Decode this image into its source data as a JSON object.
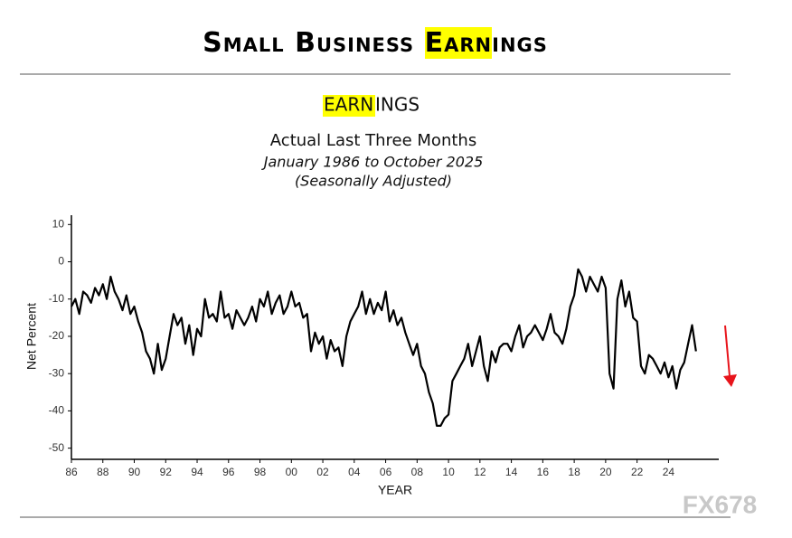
{
  "header_title": [
    "Small Business ",
    "Earn",
    "ings"
  ],
  "chart_data": {
    "type": "line",
    "title": [
      "EARN",
      "INGS"
    ],
    "subtitle": "Actual Last Three Months",
    "period": "January 1986 to October 2025",
    "note": "(Seasonally Adjusted)",
    "y_label": "Net Percent",
    "x_label": "YEAR",
    "color": "#000000",
    "xlim": [
      1986,
      2027.2
    ],
    "ylim": [
      -53,
      12.5
    ],
    "yticks": [
      10,
      0,
      -10,
      -20,
      -30,
      -40,
      -50
    ],
    "xticks": [
      {
        "value": 1986,
        "label": "86"
      },
      {
        "value": 1988,
        "label": "88"
      },
      {
        "value": 1990,
        "label": "90"
      },
      {
        "value": 1992,
        "label": "92"
      },
      {
        "value": 1994,
        "label": "94"
      },
      {
        "value": 1996,
        "label": "96"
      },
      {
        "value": 1998,
        "label": "98"
      },
      {
        "value": 2000,
        "label": "00"
      },
      {
        "value": 2002,
        "label": "02"
      },
      {
        "value": 2004,
        "label": "04"
      },
      {
        "value": 2006,
        "label": "06"
      },
      {
        "value": 2008,
        "label": "08"
      },
      {
        "value": 2010,
        "label": "10"
      },
      {
        "value": 2012,
        "label": "12"
      },
      {
        "value": 2014,
        "label": "14"
      },
      {
        "value": 2016,
        "label": "16"
      },
      {
        "value": 2018,
        "label": "18"
      },
      {
        "value": 2020,
        "label": "20"
      },
      {
        "value": 2022,
        "label": "22"
      },
      {
        "value": 2024,
        "label": "24"
      }
    ],
    "x": [
      1986,
      1986.25,
      1986.5,
      1986.75,
      1987,
      1987.25,
      1987.5,
      1987.75,
      1988,
      1988.25,
      1988.5,
      1988.75,
      1989,
      1989.25,
      1989.5,
      1989.75,
      1990,
      1990.25,
      1990.5,
      1990.75,
      1991,
      1991.25,
      1991.5,
      1991.75,
      1992,
      1992.25,
      1992.5,
      1992.75,
      1993,
      1993.25,
      1993.5,
      1993.75,
      1994,
      1994.25,
      1994.5,
      1994.75,
      1995,
      1995.25,
      1995.5,
      1995.75,
      1996,
      1996.25,
      1996.5,
      1996.75,
      1997,
      1997.25,
      1997.5,
      1997.75,
      1998,
      1998.25,
      1998.5,
      1998.75,
      1999,
      1999.25,
      1999.5,
      1999.75,
      2000,
      2000.25,
      2000.5,
      2000.75,
      2001,
      2001.25,
      2001.5,
      2001.75,
      2002,
      2002.25,
      2002.5,
      2002.75,
      2003,
      2003.25,
      2003.5,
      2003.75,
      2004,
      2004.25,
      2004.5,
      2004.75,
      2005,
      2005.25,
      2005.5,
      2005.75,
      2006,
      2006.25,
      2006.5,
      2006.75,
      2007,
      2007.25,
      2007.5,
      2007.75,
      2008,
      2008.25,
      2008.5,
      2008.75,
      2009,
      2009.25,
      2009.5,
      2009.75,
      2010,
      2010.25,
      2010.5,
      2010.75,
      2011,
      2011.25,
      2011.5,
      2011.75,
      2012,
      2012.25,
      2012.5,
      2012.75,
      2013,
      2013.25,
      2013.5,
      2013.75,
      2014,
      2014.25,
      2014.5,
      2014.75,
      2015,
      2015.25,
      2015.5,
      2015.75,
      2016,
      2016.25,
      2016.5,
      2016.75,
      2017,
      2017.25,
      2017.5,
      2017.75,
      2018,
      2018.25,
      2018.5,
      2018.75,
      2019,
      2019.25,
      2019.5,
      2019.75,
      2020,
      2020.25,
      2020.5,
      2020.75,
      2021,
      2021.25,
      2021.5,
      2021.75,
      2022,
      2022.25,
      2022.5,
      2022.75,
      2023,
      2023.25,
      2023.5,
      2023.75,
      2024,
      2024.25,
      2024.5,
      2024.75,
      2025,
      2025.25,
      2025.5,
      2025.75
    ],
    "values": [
      -12,
      -10,
      -14,
      -8,
      -9,
      -11,
      -7,
      -9,
      -6,
      -10,
      -4,
      -8,
      -10,
      -13,
      -9,
      -14,
      -12,
      -16,
      -19,
      -24,
      -26,
      -30,
      -22,
      -29,
      -26,
      -20,
      -14,
      -17,
      -15,
      -22,
      -17,
      -25,
      -18,
      -20,
      -10,
      -15,
      -14,
      -16,
      -8,
      -15,
      -14,
      -18,
      -13,
      -15,
      -17,
      -15,
      -12,
      -16,
      -10,
      -12,
      -8,
      -14,
      -11,
      -9,
      -14,
      -12,
      -8,
      -12,
      -11,
      -15,
      -14,
      -24,
      -19,
      -22,
      -20,
      -26,
      -21,
      -24,
      -23,
      -28,
      -20,
      -16,
      -14,
      -12,
      -8,
      -14,
      -10,
      -14,
      -11,
      -13,
      -8,
      -16,
      -13,
      -17,
      -15,
      -19,
      -22,
      -25,
      -22,
      -28,
      -30,
      -35,
      -38,
      -44,
      -44,
      -42,
      -41,
      -32,
      -30,
      -28,
      -26,
      -22,
      -28,
      -24,
      -20,
      -28,
      -32,
      -24,
      -27,
      -23,
      -22,
      -22,
      -24,
      -20,
      -17,
      -23,
      -20,
      -19,
      -17,
      -19,
      -21,
      -18,
      -14,
      -19,
      -20,
      -22,
      -18,
      -12,
      -9,
      -2,
      -4,
      -8,
      -4,
      -6,
      -8,
      -4,
      -7,
      -30,
      -34,
      -10,
      -5,
      -12,
      -8,
      -15,
      -16,
      -28,
      -30,
      -25,
      -26,
      -28,
      -30,
      -27,
      -31,
      -28,
      -34,
      -29,
      -27,
      -22,
      -17,
      -24
    ]
  },
  "watermark": "FX678"
}
